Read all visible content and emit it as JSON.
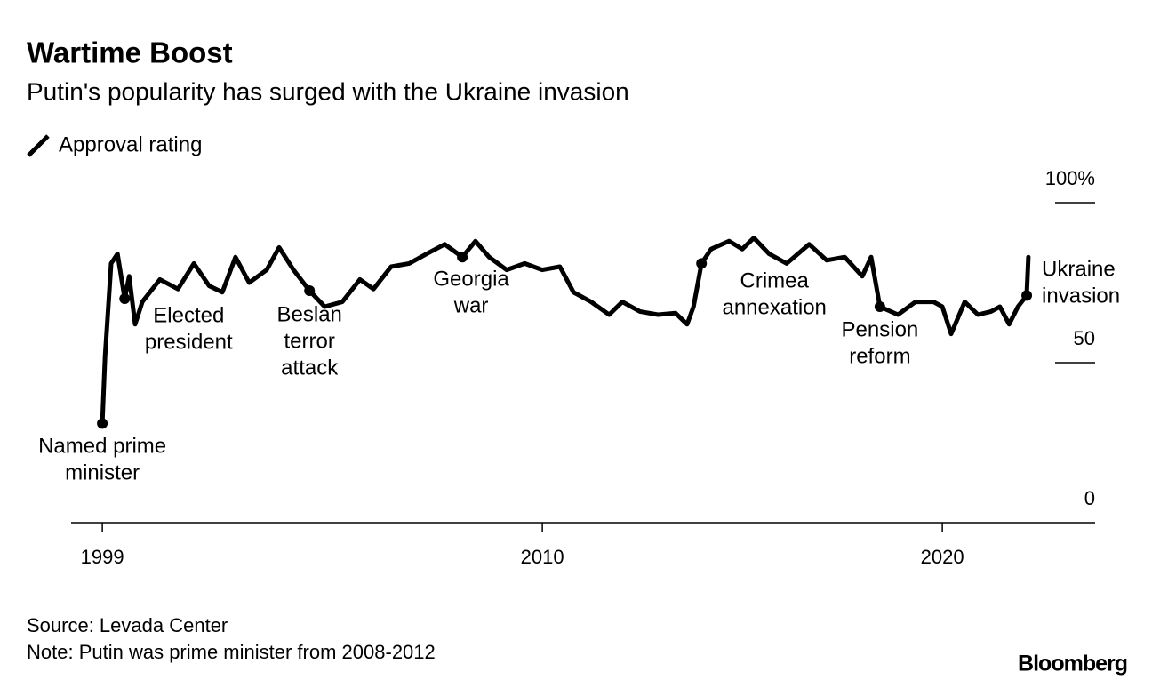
{
  "chart_data": {
    "type": "line",
    "title": "Wartime Boost",
    "subtitle": "Putin's popularity has surged with the Ukraine invasion",
    "source": "Source: Levada Center",
    "note": "Note: Putin was prime minister from 2008-2012",
    "brand": "Bloomberg",
    "series": [
      {
        "name": "Approval rating",
        "color": "#000000",
        "x": [
          1999.0,
          1999.07,
          1999.22,
          1999.38,
          1999.56,
          1999.67,
          1999.82,
          2000.0,
          2000.44,
          2000.89,
          2001.29,
          2001.67,
          2002.0,
          2002.33,
          2002.67,
          2003.11,
          2003.42,
          2003.78,
          2004.18,
          2004.56,
          2005.0,
          2005.44,
          2005.78,
          2006.22,
          2006.67,
          2007.11,
          2007.56,
          2008.0,
          2008.33,
          2008.67,
          2009.11,
          2009.56,
          2010.0,
          2010.44,
          2010.78,
          2011.22,
          2011.67,
          2012.0,
          2012.44,
          2012.89,
          2013.33,
          2013.62,
          2013.78,
          2013.98,
          2014.22,
          2014.67,
          2015.0,
          2015.29,
          2015.67,
          2016.11,
          2016.67,
          2017.11,
          2017.56,
          2018.0,
          2018.22,
          2018.44,
          2018.89,
          2019.33,
          2019.78,
          2020.0,
          2020.22,
          2020.56,
          2020.89,
          2021.22,
          2021.44,
          2021.67,
          2021.89,
          2022.11,
          2022.15
        ],
        "values": [
          31,
          52,
          81,
          84,
          70,
          77,
          62,
          69,
          76,
          73,
          81,
          74,
          72,
          83,
          75,
          79,
          86,
          79,
          72.5,
          67.5,
          69,
          76,
          73,
          80,
          81,
          84,
          87,
          83,
          88,
          83,
          79,
          81,
          79,
          80,
          72,
          69,
          65,
          69,
          66,
          65,
          65.5,
          62,
          67.5,
          81,
          85.5,
          88,
          85.5,
          89,
          84,
          81,
          87,
          82,
          83,
          77,
          83,
          67.5,
          65,
          69,
          69,
          67.5,
          59,
          69,
          65,
          66,
          67.5,
          62,
          67.5,
          71,
          83
        ]
      }
    ],
    "annotations": [
      {
        "x": 1999.0,
        "y": 31,
        "text": [
          "Named prime",
          "minister"
        ]
      },
      {
        "x": 1999.56,
        "y": 70,
        "text": [
          "Elected",
          "president"
        ]
      },
      {
        "x": 2004.18,
        "y": 72.5,
        "text": [
          "Beslan",
          "terror",
          "attack"
        ]
      },
      {
        "x": 2008.0,
        "y": 83,
        "text": [
          "Georgia",
          "war"
        ]
      },
      {
        "x": 2013.98,
        "y": 81,
        "text": [
          "Crimea",
          "annexation"
        ]
      },
      {
        "x": 2018.44,
        "y": 67.5,
        "text": [
          "Pension",
          "reform"
        ]
      },
      {
        "x": 2022.11,
        "y": 71,
        "text": [
          "Ukraine",
          "invasion"
        ]
      }
    ],
    "xlim": [
      1998.22,
      2023.82
    ],
    "xticks": [
      1999,
      2010,
      2020
    ],
    "ylim": [
      0,
      100
    ],
    "yticks": [
      0,
      50,
      {
        "value": 100,
        "label": "100%"
      }
    ]
  }
}
